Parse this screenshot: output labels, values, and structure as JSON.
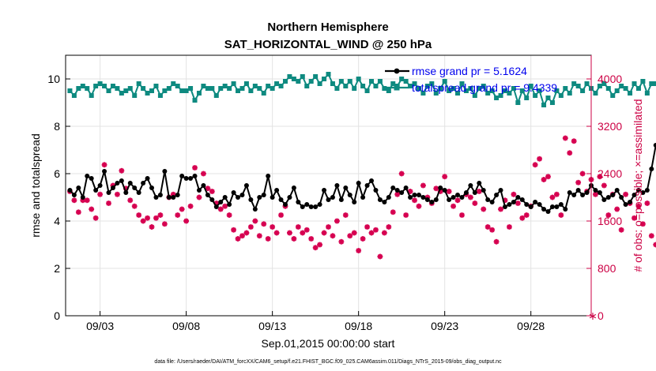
{
  "chart_data": {
    "type": "line",
    "title": "Northern Hemisphere",
    "subtitle": "SAT_HORIZONTAL_WIND @ 250 hPa",
    "xlabel": "Sep.01,2015 00:00:00 start",
    "ylabel": "rmse and totalspread",
    "ylabel_right": "# of obs: o=possible; ×=assimilated",
    "ylim": [
      0,
      11
    ],
    "yticks": [
      0,
      2,
      4,
      6,
      8,
      10
    ],
    "ylim_right": [
      0,
      4400
    ],
    "yticks_right": [
      0,
      800,
      1600,
      2400,
      3200,
      4000
    ],
    "xlim": [
      1.0,
      31.5
    ],
    "xticks": [
      {
        "x": 3,
        "label": "09/03"
      },
      {
        "x": 8,
        "label": "09/08"
      },
      {
        "x": 13,
        "label": "09/13"
      },
      {
        "x": 18,
        "label": "09/18"
      },
      {
        "x": 23,
        "label": "09/23"
      },
      {
        "x": 28,
        "label": "09/28"
      }
    ],
    "grid": true,
    "legend_position": "top-right",
    "footnote": "data file: /Users/raeder/DAI/ATM_forcXX/CAM6_setup/f.e21.FHIST_BGC.f09_025.CAM6assim.011/Diags_NTrS_2015-09/obs_diag_output.nc",
    "series": [
      {
        "name": "rmse grand pr = 5.1624",
        "color": "#000000",
        "marker": "circle",
        "values": [
          5.3,
          5.1,
          5.4,
          5.0,
          5.9,
          5.8,
          5.3,
          5.5,
          6.1,
          5.2,
          5.4,
          5.6,
          5.7,
          5.2,
          5.6,
          5.4,
          5.2,
          5.6,
          5.8,
          5.4,
          5.0,
          5.1,
          6.1,
          5.0,
          5.0,
          5.1,
          5.9,
          5.8,
          5.8,
          5.9,
          5.3,
          5.5,
          5.1,
          4.9,
          4.6,
          4.8,
          5.0,
          4.7,
          5.2,
          5.0,
          5.1,
          5.5,
          4.9,
          4.5,
          5.0,
          5.1,
          5.9,
          5.0,
          5.3,
          4.9,
          4.7,
          5.0,
          5.4,
          4.8,
          4.6,
          4.7,
          4.6,
          4.6,
          4.7,
          5.3,
          4.9,
          5.0,
          5.5,
          4.9,
          5.4,
          5.1,
          4.8,
          5.6,
          5.0,
          5.5,
          5.7,
          5.3,
          4.9,
          4.8,
          5.0,
          5.4,
          5.3,
          5.2,
          5.4,
          5.0,
          5.1,
          5.1,
          5.0,
          4.9,
          4.8,
          4.9,
          5.4,
          5.3,
          4.9,
          5.0,
          5.1,
          5.0,
          5.2,
          5.5,
          5.2,
          5.6,
          5.3,
          4.9,
          4.8,
          5.1,
          5.3,
          4.6,
          4.7,
          4.8,
          5.0,
          4.9,
          4.7,
          4.6,
          4.8,
          4.7,
          4.5,
          4.4,
          4.6,
          4.6,
          4.7,
          4.5,
          5.2,
          5.1,
          5.3,
          5.1,
          5.2,
          5.5,
          5.3,
          5.2,
          4.9,
          5.0,
          5.1,
          5.3,
          5.0,
          4.7,
          4.8,
          5.1,
          5.3,
          5.2,
          5.3,
          6.2,
          7.2
        ]
      },
      {
        "name": "totalspread grand pr = 9.4339",
        "color": "#0e8a80",
        "marker": "square",
        "values": [
          9.5,
          9.3,
          9.6,
          9.7,
          9.6,
          9.3,
          9.7,
          9.8,
          9.7,
          9.5,
          9.7,
          9.6,
          9.4,
          9.5,
          9.6,
          9.3,
          9.8,
          9.6,
          9.4,
          9.5,
          9.7,
          9.3,
          9.5,
          9.6,
          9.8,
          9.7,
          9.5,
          9.5,
          9.6,
          9.1,
          9.4,
          9.7,
          9.6,
          9.6,
          9.3,
          9.6,
          9.7,
          9.6,
          9.8,
          9.5,
          9.6,
          9.8,
          9.5,
          9.7,
          9.6,
          9.4,
          9.7,
          9.6,
          9.8,
          9.7,
          9.9,
          10.1,
          10.0,
          9.9,
          10.1,
          9.7,
          9.9,
          10.1,
          9.8,
          10.0,
          10.2,
          9.8,
          9.6,
          9.9,
          9.7,
          9.9,
          9.6,
          10.0,
          9.7,
          9.5,
          9.9,
          9.7,
          9.9,
          9.6,
          9.5,
          9.8,
          9.7,
          10.0,
          9.9,
          9.7,
          9.8,
          9.6,
          9.4,
          9.7,
          9.8,
          9.4,
          9.6,
          9.9,
          9.5,
          9.6,
          9.4,
          9.8,
          9.5,
          9.6,
          9.3,
          9.6,
          9.7,
          9.4,
          9.5,
          9.2,
          9.3,
          9.5,
          9.4,
          9.6,
          9.0,
          9.5,
          9.2,
          9.7,
          9.3,
          9.5,
          8.9,
          9.2,
          9.0,
          9.5,
          9.3,
          9.6,
          9.4,
          9.8,
          9.7,
          9.5,
          9.8,
          9.6,
          9.4,
          9.7,
          9.8,
          9.6,
          9.3,
          9.5,
          9.7,
          9.6,
          9.4,
          9.8,
          9.6,
          9.9,
          9.4,
          9.8,
          9.8
        ]
      }
    ],
    "obs_assimilated": [
      2100,
      1950,
      1750,
      1950,
      1950,
      1800,
      1650,
      2050,
      2550,
      1900,
      2200,
      2050,
      2450,
      2150,
      1950,
      1850,
      1700,
      1600,
      1650,
      1500,
      1650,
      1700,
      1550,
      2000,
      2050,
      1700,
      1800,
      1600,
      1850,
      2500,
      2000,
      2400,
      2150,
      2100,
      1900,
      1800,
      1850,
      1700,
      1450,
      1300,
      1350,
      1400,
      1500,
      1600,
      1350,
      1550,
      1300,
      1500,
      1400,
      1700,
      1850,
      1400,
      1300,
      1500,
      1400,
      1450,
      1300,
      1150,
      1200,
      1400,
      1500,
      1350,
      1600,
      1250,
      1700,
      1350,
      1400,
      1100,
      1300,
      1500,
      1400,
      1450,
      1000,
      1400,
      1500,
      1750,
      2050,
      2400,
      1700,
      2100,
      1950,
      1850,
      2200,
      2000,
      1900,
      2150,
      2100,
      2350,
      2100,
      1850,
      1950,
      1700,
      2050,
      2000,
      1900,
      2100,
      1800,
      1500,
      1450,
      1250,
      1800,
      1950,
      1500,
      2050,
      1900,
      1650,
      1700,
      1850,
      2550,
      2650,
      2300,
      2350,
      2000,
      2050,
      1700,
      3000,
      2750,
      2950,
      2250,
      2400,
      2100,
      2300,
      2050,
      2350,
      2200,
      1700,
      2050,
      1800,
      1450,
      2050,
      1900,
      1650,
      1850,
      1550,
      1900,
      1350,
      1200,
      1250
    ]
  }
}
